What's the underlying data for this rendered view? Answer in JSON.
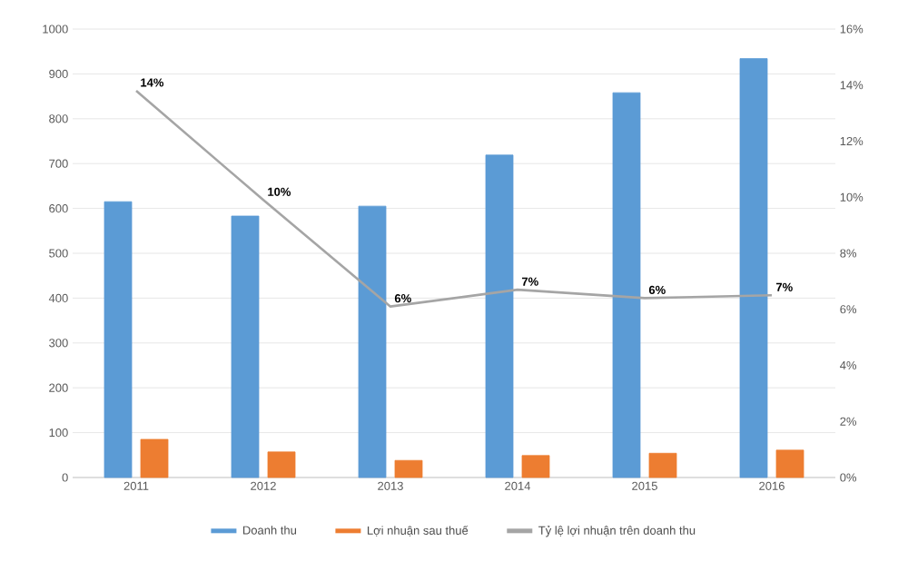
{
  "chart_data": {
    "type": "bar",
    "categories": [
      "2011",
      "2012",
      "2013",
      "2014",
      "2015",
      "2016"
    ],
    "series": [
      {
        "name": "Doanh thu",
        "color": "#5b9bd5",
        "values": [
          615,
          583,
          605,
          719,
          858,
          934
        ]
      },
      {
        "name": "Lợi nhuận sau thuế",
        "color": "#ed7d31",
        "values": [
          85,
          57,
          38,
          49,
          54,
          61
        ]
      },
      {
        "name": "Tỷ lệ lợi nhuận trên doanh thu",
        "type": "line",
        "axis": "y2",
        "color": "#a5a5a5",
        "values": [
          13.8,
          9.9,
          6.1,
          6.7,
          6.4,
          6.5
        ],
        "value_labels": [
          "14%",
          "10%",
          "6%",
          "7%",
          "6%",
          "7%"
        ]
      }
    ],
    "ylim": [
      0,
      1000
    ],
    "yticks": [
      0,
      100,
      200,
      300,
      400,
      500,
      600,
      700,
      800,
      900,
      1000
    ],
    "y2lim": [
      0,
      16
    ],
    "y2ticks": [
      {
        "value": 0,
        "label": "0%"
      },
      {
        "value": 2,
        "label": "2%"
      },
      {
        "value": 4,
        "label": "4%"
      },
      {
        "value": 6,
        "label": "6%"
      },
      {
        "value": 8,
        "label": "8%"
      },
      {
        "value": 10,
        "label": "10%"
      },
      {
        "value": 12,
        "label": "12%"
      },
      {
        "value": 14,
        "label": "14%"
      },
      {
        "value": 16,
        "label": "16%"
      }
    ],
    "grid": "y",
    "legend": "bottom"
  }
}
